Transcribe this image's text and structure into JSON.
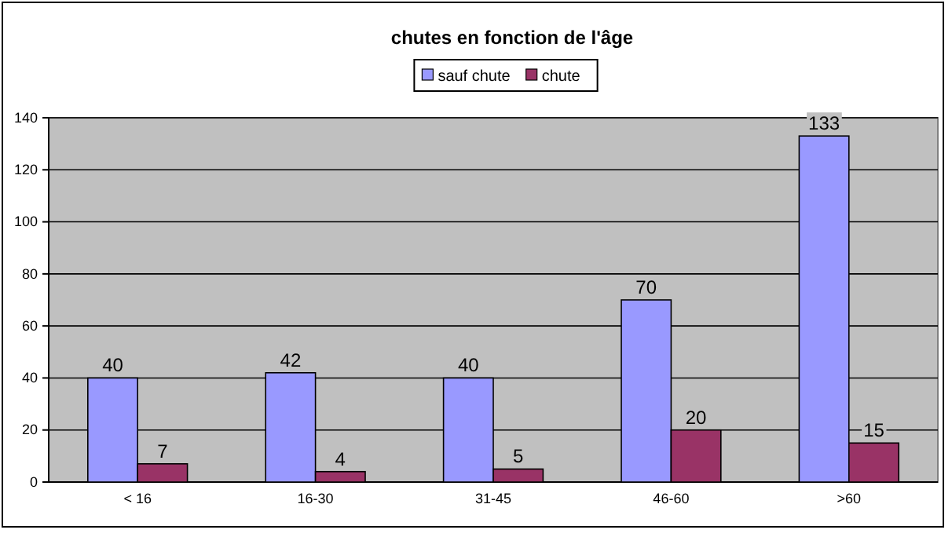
{
  "chart_data": {
    "type": "bar",
    "title": "chutes en fonction de l'âge",
    "categories": [
      "< 16",
      "16-30",
      "31-45",
      "46-60",
      ">60"
    ],
    "series": [
      {
        "name": "sauf chute",
        "color": "#9999ff",
        "values": [
          40,
          42,
          40,
          70,
          133
        ]
      },
      {
        "name": "chute",
        "color": "#993366",
        "values": [
          7,
          4,
          5,
          20,
          15
        ]
      }
    ],
    "ylim": [
      0,
      140
    ],
    "yticks": [
      0,
      20,
      40,
      60,
      80,
      100,
      120,
      140
    ],
    "grid": "y",
    "legend": "top",
    "data_labels": true
  }
}
